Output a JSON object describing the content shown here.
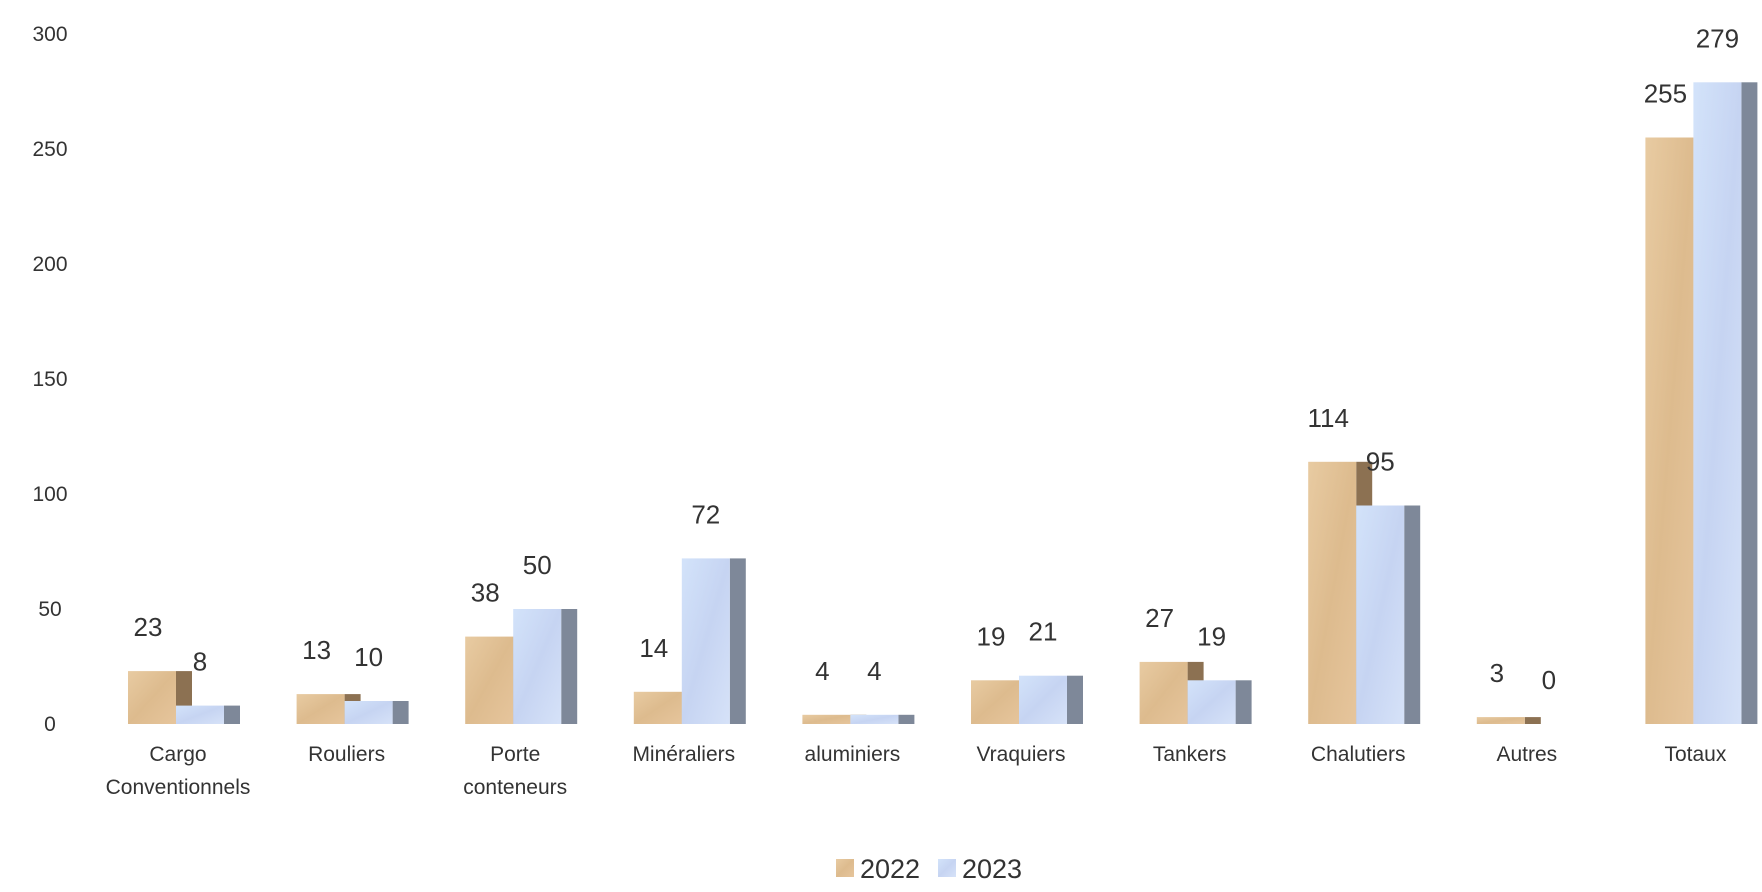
{
  "chart_data": {
    "type": "bar",
    "categories": [
      [
        "Cargo",
        "Conventionnels"
      ],
      [
        "Rouliers"
      ],
      [
        "Porte",
        "conteneurs"
      ],
      [
        "Minéraliers"
      ],
      [
        "aluminiers"
      ],
      [
        "Vraquiers"
      ],
      [
        "Tankers"
      ],
      [
        "Chalutiers"
      ],
      [
        "Autres"
      ],
      [
        "Totaux"
      ]
    ],
    "series": [
      {
        "name": "2022",
        "values": [
          23,
          13,
          38,
          14,
          4,
          19,
          27,
          114,
          3,
          255
        ],
        "color": "#E2C298",
        "side_color": "#8C7152"
      },
      {
        "name": "2023",
        "values": [
          8,
          10,
          50,
          72,
          4,
          21,
          19,
          95,
          0,
          279
        ],
        "color": "#CCDCF6",
        "side_color": "#7E8899"
      }
    ],
    "ylim": [
      0,
      300
    ],
    "yticks": [
      0,
      50,
      100,
      150,
      200,
      250,
      300
    ],
    "grid": false,
    "legend": "bottom-center",
    "title": "",
    "xlabel": "",
    "ylabel": ""
  }
}
